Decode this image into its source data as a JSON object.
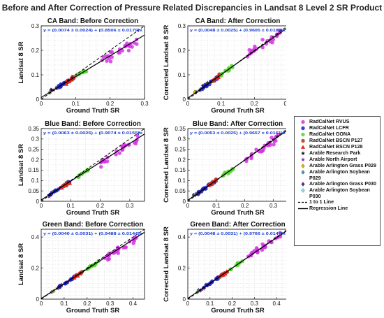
{
  "title": "Before and After Correction of Pressure Related Discrepancies in Landsat 8 Level 2 SR Product",
  "legend": {
    "items": [
      {
        "key": "rvus",
        "label": "RadCalNet RVUS",
        "marker": "circle",
        "color": "#d633e6"
      },
      {
        "key": "lcfr",
        "label": "RadCalNet LCFR",
        "marker": "circle",
        "color": "#1f1fc4"
      },
      {
        "key": "gona",
        "label": "RadCalNet GONA",
        "marker": "circle",
        "color": "#52d62a"
      },
      {
        "key": "p127",
        "label": "RadCalNet BSCN P127",
        "marker": "circle",
        "color": "#b5321b"
      },
      {
        "key": "p128",
        "label": "RadCalNet BSCN P128",
        "marker": "triangle",
        "color": "#e8231c"
      },
      {
        "key": "arp",
        "label": "Arable Research Park",
        "marker": "star",
        "color": "#111111"
      },
      {
        "key": "ana",
        "label": "Arable North Airport",
        "marker": "star",
        "color": "#7b2fa0"
      },
      {
        "key": "g029",
        "label": "Arable Arlington Grass P029",
        "marker": "diamond",
        "color": "#e0b000"
      },
      {
        "key": "s029",
        "label": "Arable Arlington Soybean P029",
        "marker": "diamond",
        "color": "#4a98a8"
      },
      {
        "key": "g030",
        "label": "Arable Arlington Grass P030",
        "marker": "diamond",
        "color": "#5c2a90"
      },
      {
        "key": "s030",
        "label": "Arable Arlington Soybean P030",
        "marker": "diamond",
        "color": "#7fe0f5"
      },
      {
        "key": "one",
        "label": "1 to 1 Line",
        "marker": "dashed",
        "color": "#000000"
      },
      {
        "key": "reg",
        "label": "Regression Line",
        "marker": "solid",
        "color": "#000000"
      }
    ]
  },
  "chart_data": [
    {
      "type": "scatter",
      "title": "CA Band: Before Correction",
      "xlabel": "Ground Truth SR",
      "ylabel": "Landsat 8 SR",
      "equation": "y = (0.0074 ± 0.0024) + (0.8506 ± 0.0179)x",
      "intercept": 0.0074,
      "slope": 0.8506,
      "xlim": [
        0,
        0.3
      ],
      "ylim": [
        0,
        0.3
      ],
      "xticks": [
        "0",
        "0.1",
        "0.2",
        "0.3"
      ],
      "yticks": [
        "0",
        "0.1",
        "0.2",
        "0.3"
      ],
      "tick_values": [
        0,
        0.1,
        0.2,
        0.3
      ],
      "grid": true
    },
    {
      "type": "scatter",
      "title": "CA Band: After Correction",
      "xlabel": "Ground Truth SR",
      "ylabel": "Corrected Landsat 8 SR",
      "equation": "y = (0.0048 ± 0.0025) + (0.9605 ± 0.0189)x",
      "intercept": 0.0048,
      "slope": 0.9605,
      "xlim": [
        0,
        0.3
      ],
      "ylim": [
        0,
        0.3
      ],
      "xticks": [
        "0",
        "0.1",
        "0.2",
        "0.3"
      ],
      "yticks": [
        "0",
        "0.1",
        "0.2",
        "0.3"
      ],
      "tick_values": [
        0,
        0.1,
        0.2,
        0.3
      ],
      "grid": true
    },
    {
      "type": "scatter",
      "title": "Blue Band: Before Correction",
      "xlabel": "Ground Truth SR",
      "ylabel": "Landsat 8 SR",
      "equation": "y = (0.0063 ± 0.0025) + (0.9074 ± 0.0155)x",
      "intercept": 0.0063,
      "slope": 0.9074,
      "xlim": [
        0,
        0.35
      ],
      "ylim": [
        0,
        0.35
      ],
      "xticks": [
        "0",
        "0.1",
        "0.2",
        "0.3"
      ],
      "yticks": [
        "0",
        "0.05",
        "0.1",
        "0.15",
        "0.2",
        "0.25",
        "0.3",
        "0.35"
      ],
      "tick_values": [
        0,
        0.1,
        0.2,
        0.3
      ],
      "ytick_values": [
        0,
        0.05,
        0.1,
        0.15,
        0.2,
        0.25,
        0.3,
        0.35
      ],
      "grid": true
    },
    {
      "type": "scatter",
      "title": "Blue Band: After Correction",
      "xlabel": "Ground Truth SR",
      "ylabel": "Corrected Landsat 8 SR",
      "equation": "y = (0.0053 ± 0.0025) + (0.9657 ± 0.0161)x",
      "intercept": 0.0053,
      "slope": 0.9657,
      "xlim": [
        0,
        0.35
      ],
      "ylim": [
        0,
        0.35
      ],
      "xticks": [
        "0",
        "0.1",
        "0.2",
        "0.3"
      ],
      "yticks": [
        "0",
        "0.05",
        "0.1",
        "0.15",
        "0.2",
        "0.25",
        "0.3",
        "0.35"
      ],
      "tick_values": [
        0,
        0.1,
        0.2,
        0.3
      ],
      "ytick_values": [
        0,
        0.05,
        0.1,
        0.15,
        0.2,
        0.25,
        0.3,
        0.35
      ],
      "grid": true
    },
    {
      "type": "scatter",
      "title": "Green Band: Before Correction",
      "xlabel": "Ground Truth SR",
      "ylabel": "Landsat 8 SR",
      "equation": "y = (0.0040 ± 0.0031) + (0.9488 ± 0.0144)x",
      "intercept": 0.004,
      "slope": 0.9488,
      "xlim": [
        0,
        0.45
      ],
      "ylim": [
        0,
        0.45
      ],
      "xticks": [
        "0",
        "0.1",
        "0.2",
        "0.3",
        "0.4"
      ],
      "yticks": [
        "0",
        "0.2",
        "0.4"
      ],
      "tick_values": [
        0,
        0.1,
        0.2,
        0.3,
        0.4
      ],
      "ytick_values": [
        0,
        0.2,
        0.4
      ],
      "grid": true
    },
    {
      "type": "scatter",
      "title": "Green Band: After Correction",
      "xlabel": "Ground Truth SR",
      "ylabel": "Corrected Landsat 8 SR",
      "equation": "y = (0.0048 ± 0.0031) + (0.9766 ± 0.0147)x",
      "intercept": 0.0048,
      "slope": 0.9766,
      "xlim": [
        0,
        0.45
      ],
      "ylim": [
        0,
        0.45
      ],
      "xticks": [
        "0",
        "0.1",
        "0.2",
        "0.3",
        "0.4"
      ],
      "yticks": [
        "0",
        "0.2",
        "0.4"
      ],
      "tick_values": [
        0,
        0.1,
        0.2,
        0.3,
        0.4
      ],
      "ytick_values": [
        0,
        0.2,
        0.4
      ],
      "grid": true
    }
  ],
  "site_clusters": {
    "rvus": {
      "color": "#d633e6",
      "count": 26,
      "x_range_ca": [
        0.17,
        0.28
      ],
      "x_range_blue": [
        0.2,
        0.33
      ],
      "x_range_green": [
        0.27,
        0.42
      ]
    },
    "lcfr": {
      "color": "#1f1fc4",
      "count": 18,
      "x_range_ca": [
        0.04,
        0.1
      ],
      "x_range_blue": [
        0.03,
        0.1
      ],
      "x_range_green": [
        0.07,
        0.16
      ]
    },
    "gona": {
      "color": "#52d62a",
      "count": 12,
      "x_range_ca": [
        0.1,
        0.14
      ],
      "x_range_blue": [
        0.12,
        0.16
      ],
      "x_range_green": [
        0.19,
        0.25
      ]
    },
    "p127": {
      "color": "#b5321b",
      "count": 8,
      "x_range_ca": [
        0.07,
        0.1
      ],
      "x_range_blue": [
        0.07,
        0.1
      ],
      "x_range_green": [
        0.14,
        0.18
      ]
    },
    "p128": {
      "color": "#e8231c",
      "count": 6,
      "x_range_ca": [
        0.07,
        0.1
      ],
      "x_range_blue": [
        0.07,
        0.1
      ],
      "x_range_green": [
        0.14,
        0.18
      ]
    },
    "arable": {
      "color": "#4a98a8",
      "count": 10,
      "x_range_ca": [
        0.02,
        0.06
      ],
      "x_range_blue": [
        0.02,
        0.05
      ],
      "x_range_green": [
        0.04,
        0.09
      ]
    }
  }
}
